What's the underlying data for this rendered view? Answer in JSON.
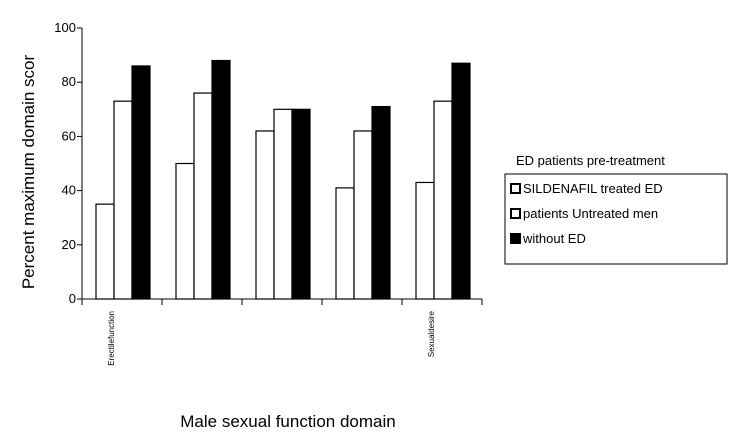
{
  "chart_data": {
    "type": "bar",
    "title": "",
    "xlabel": "Male sexual function domain",
    "ylabel": "Percent maximum domain scor",
    "ylim": [
      0,
      100
    ],
    "yticks": [
      0,
      20,
      40,
      60,
      80,
      100
    ],
    "categories": [
      "Erectilefunction",
      "",
      "",
      "",
      "Sexualdesire"
    ],
    "series": [
      {
        "name": "SILDENAFIL treated ED",
        "color": "#ffffff",
        "values": [
          35,
          50,
          62,
          41,
          43
        ]
      },
      {
        "name": "patients Untreated men",
        "color": "#ffffff",
        "values": [
          73,
          76,
          70,
          62,
          73
        ]
      },
      {
        "name": "without ED",
        "color": "#000000",
        "values": [
          86,
          88,
          70,
          71,
          87
        ]
      }
    ],
    "legend": {
      "title": "ED patients pre-treatment",
      "placement": "right"
    },
    "grid": false
  }
}
